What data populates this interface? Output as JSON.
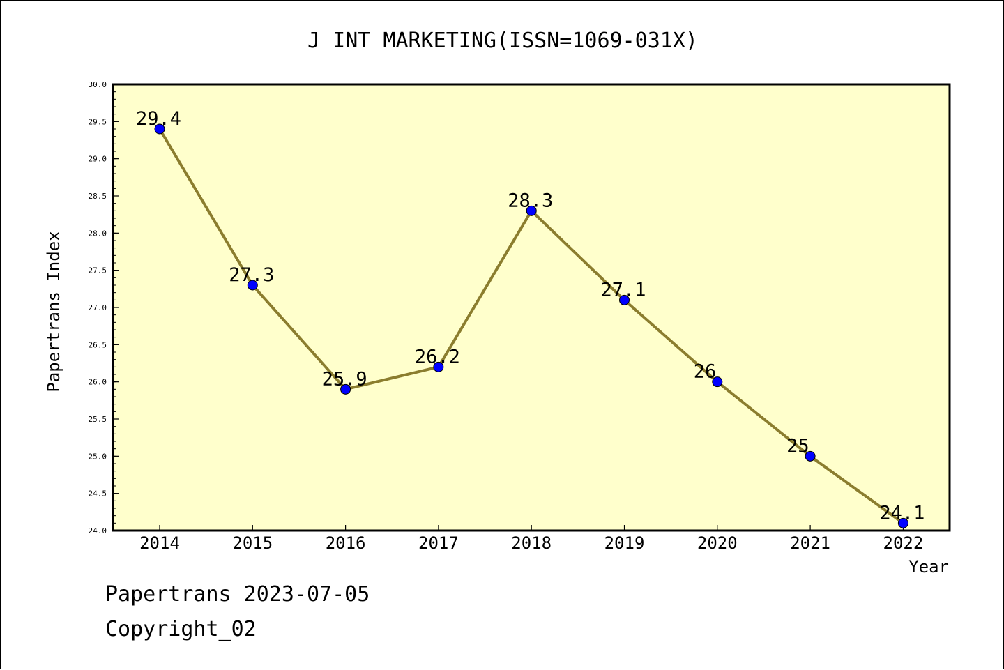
{
  "chart_data": {
    "type": "line",
    "title": "J INT MARKETING(ISSN=1069-031X)",
    "xlabel": "Year",
    "ylabel": "Papertrans Index",
    "categories": [
      "2014",
      "2015",
      "2016",
      "2017",
      "2018",
      "2019",
      "2020",
      "2021",
      "2022"
    ],
    "series": [
      {
        "values": [
          29.4,
          27.3,
          25.9,
          26.2,
          28.3,
          27.1,
          26,
          25,
          24.1
        ],
        "labels": [
          "29.4",
          "27.3",
          "25.9",
          "26.2",
          "28.3",
          "27.1",
          "26",
          "25",
          "24.1"
        ]
      }
    ],
    "ylim": [
      24.0,
      30.0
    ],
    "yticks": [
      "24.0",
      "24.5",
      "25.0",
      "25.5",
      "26.0",
      "26.5",
      "27.0",
      "27.5",
      "28.0",
      "28.5",
      "29.0",
      "29.5",
      "30.0"
    ],
    "grid": false,
    "colors": {
      "plot_background": "#ffffcc",
      "line": "#8b7d2e",
      "marker": "#0000ff"
    }
  },
  "footer": {
    "line1": "Papertrans 2023-07-05",
    "line2": "Copyright_02"
  }
}
